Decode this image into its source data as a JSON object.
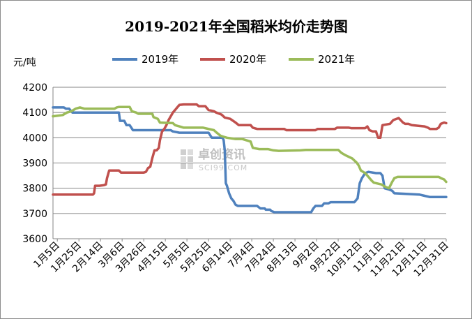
{
  "chart_data": {
    "type": "line",
    "title": "2019-2021年全国稻米均价走势图",
    "ylabel": "元/吨",
    "ylim": [
      3600,
      4200
    ],
    "yticks": [
      3600,
      3700,
      3800,
      3900,
      4000,
      4100,
      4200
    ],
    "categories": [
      "1月5日",
      "1月25日",
      "2月14日",
      "3月6日",
      "3月26日",
      "4月15日",
      "5月5日",
      "5月25日",
      "6月14日",
      "7月4日",
      "7月24日",
      "8月13日",
      "9月2日",
      "9月22日",
      "10月12日",
      "11月1日",
      "11月21日",
      "12月11日",
      "12月31日"
    ],
    "x_range": [
      1,
      365
    ],
    "legend_position": "top",
    "grid": "horizontal",
    "watermark": {
      "main": "卓创资讯",
      "sub": "SCI99.COM"
    },
    "series": [
      {
        "name": "2019年",
        "color": "#4f81bd",
        "points": [
          [
            1,
            4120
          ],
          [
            11,
            4120
          ],
          [
            13,
            4115
          ],
          [
            16,
            4115
          ],
          [
            19,
            4100
          ],
          [
            30,
            4100
          ],
          [
            60,
            4100
          ],
          [
            62,
            4100
          ],
          [
            63,
            4067
          ],
          [
            67,
            4067
          ],
          [
            69,
            4050
          ],
          [
            72,
            4050
          ],
          [
            75,
            4030
          ],
          [
            90,
            4030
          ],
          [
            110,
            4030
          ],
          [
            112,
            4025
          ],
          [
            118,
            4020
          ],
          [
            145,
            4020
          ],
          [
            148,
            4000
          ],
          [
            158,
            4000
          ],
          [
            159,
            3990
          ],
          [
            160,
            3950
          ],
          [
            161,
            3820
          ],
          [
            162,
            3810
          ],
          [
            164,
            3780
          ],
          [
            166,
            3760
          ],
          [
            168,
            3750
          ],
          [
            170,
            3735
          ],
          [
            172,
            3730
          ],
          [
            190,
            3730
          ],
          [
            193,
            3720
          ],
          [
            197,
            3720
          ],
          [
            198,
            3715
          ],
          [
            202,
            3715
          ],
          [
            203,
            3710
          ],
          [
            206,
            3705
          ],
          [
            240,
            3705
          ],
          [
            242,
            3720
          ],
          [
            244,
            3730
          ],
          [
            250,
            3730
          ],
          [
            252,
            3740
          ],
          [
            256,
            3740
          ],
          [
            258,
            3745
          ],
          [
            280,
            3745
          ],
          [
            283,
            3760
          ],
          [
            285,
            3820
          ],
          [
            287,
            3840
          ],
          [
            290,
            3860
          ],
          [
            293,
            3865
          ],
          [
            300,
            3860
          ],
          [
            304,
            3860
          ],
          [
            306,
            3850
          ],
          [
            308,
            3800
          ],
          [
            312,
            3795
          ],
          [
            315,
            3790
          ],
          [
            317,
            3780
          ],
          [
            340,
            3775
          ],
          [
            345,
            3770
          ],
          [
            350,
            3765
          ],
          [
            365,
            3765
          ]
        ]
      },
      {
        "name": "2020年",
        "color": "#c0504d",
        "points": [
          [
            1,
            3775
          ],
          [
            38,
            3775
          ],
          [
            39,
            3780
          ],
          [
            40,
            3810
          ],
          [
            44,
            3810
          ],
          [
            48,
            3812
          ],
          [
            50,
            3815
          ],
          [
            51,
            3840
          ],
          [
            53,
            3870
          ],
          [
            55,
            3870
          ],
          [
            62,
            3870
          ],
          [
            64,
            3862
          ],
          [
            85,
            3862
          ],
          [
            87,
            3865
          ],
          [
            89,
            3880
          ],
          [
            91,
            3885
          ],
          [
            93,
            3920
          ],
          [
            95,
            3950
          ],
          [
            97,
            3950
          ],
          [
            99,
            3960
          ],
          [
            100,
            3990
          ],
          [
            102,
            4025
          ],
          [
            104,
            4035
          ],
          [
            106,
            4050
          ],
          [
            108,
            4070
          ],
          [
            110,
            4085
          ],
          [
            112,
            4100
          ],
          [
            114,
            4110
          ],
          [
            116,
            4120
          ],
          [
            118,
            4130
          ],
          [
            122,
            4132
          ],
          [
            134,
            4132
          ],
          [
            136,
            4125
          ],
          [
            142,
            4125
          ],
          [
            145,
            4110
          ],
          [
            150,
            4105
          ],
          [
            152,
            4100
          ],
          [
            157,
            4092
          ],
          [
            160,
            4080
          ],
          [
            165,
            4075
          ],
          [
            170,
            4060
          ],
          [
            173,
            4050
          ],
          [
            184,
            4050
          ],
          [
            186,
            4040
          ],
          [
            190,
            4035
          ],
          [
            215,
            4035
          ],
          [
            217,
            4030
          ],
          [
            244,
            4030
          ],
          [
            246,
            4035
          ],
          [
            262,
            4035
          ],
          [
            264,
            4040
          ],
          [
            275,
            4040
          ],
          [
            277,
            4038
          ],
          [
            290,
            4038
          ],
          [
            292,
            4045
          ],
          [
            294,
            4030
          ],
          [
            297,
            4025
          ],
          [
            300,
            4025
          ],
          [
            302,
            4000
          ],
          [
            304,
            4000
          ],
          [
            306,
            4050
          ],
          [
            313,
            4055
          ],
          [
            316,
            4070
          ],
          [
            321,
            4078
          ],
          [
            325,
            4060
          ],
          [
            327,
            4055
          ],
          [
            330,
            4055
          ],
          [
            333,
            4050
          ],
          [
            345,
            4045
          ],
          [
            348,
            4040
          ],
          [
            350,
            4035
          ],
          [
            356,
            4035
          ],
          [
            358,
            4040
          ],
          [
            360,
            4055
          ],
          [
            363,
            4060
          ],
          [
            365,
            4058
          ]
        ]
      },
      {
        "name": "2021年",
        "color": "#9bbb59",
        "points": [
          [
            1,
            4085
          ],
          [
            10,
            4090
          ],
          [
            14,
            4100
          ],
          [
            18,
            4105
          ],
          [
            22,
            4115
          ],
          [
            26,
            4120
          ],
          [
            30,
            4115
          ],
          [
            58,
            4115
          ],
          [
            60,
            4120
          ],
          [
            62,
            4122
          ],
          [
            72,
            4122
          ],
          [
            74,
            4105
          ],
          [
            78,
            4100
          ],
          [
            80,
            4095
          ],
          [
            93,
            4095
          ],
          [
            94,
            4082
          ],
          [
            98,
            4075
          ],
          [
            100,
            4060
          ],
          [
            112,
            4058
          ],
          [
            114,
            4050
          ],
          [
            118,
            4045
          ],
          [
            122,
            4040
          ],
          [
            140,
            4040
          ],
          [
            150,
            4030
          ],
          [
            152,
            4022
          ],
          [
            154,
            4015
          ],
          [
            156,
            4008
          ],
          [
            158,
            4005
          ],
          [
            162,
            4000
          ],
          [
            170,
            3995
          ],
          [
            176,
            3995
          ],
          [
            180,
            3990
          ],
          [
            184,
            3985
          ],
          [
            186,
            3960
          ],
          [
            192,
            3955
          ],
          [
            200,
            3955
          ],
          [
            205,
            3950
          ],
          [
            210,
            3948
          ],
          [
            230,
            3950
          ],
          [
            235,
            3952
          ],
          [
            265,
            3952
          ],
          [
            268,
            3940
          ],
          [
            272,
            3930
          ],
          [
            278,
            3918
          ],
          [
            282,
            3902
          ],
          [
            284,
            3890
          ],
          [
            286,
            3870
          ],
          [
            290,
            3860
          ],
          [
            294,
            3840
          ],
          [
            296,
            3830
          ],
          [
            298,
            3822
          ],
          [
            305,
            3815
          ],
          [
            309,
            3805
          ],
          [
            312,
            3800
          ],
          [
            315,
            3825
          ],
          [
            317,
            3840
          ],
          [
            320,
            3845
          ],
          [
            358,
            3845
          ],
          [
            360,
            3840
          ],
          [
            363,
            3835
          ],
          [
            365,
            3825
          ]
        ]
      }
    ]
  }
}
